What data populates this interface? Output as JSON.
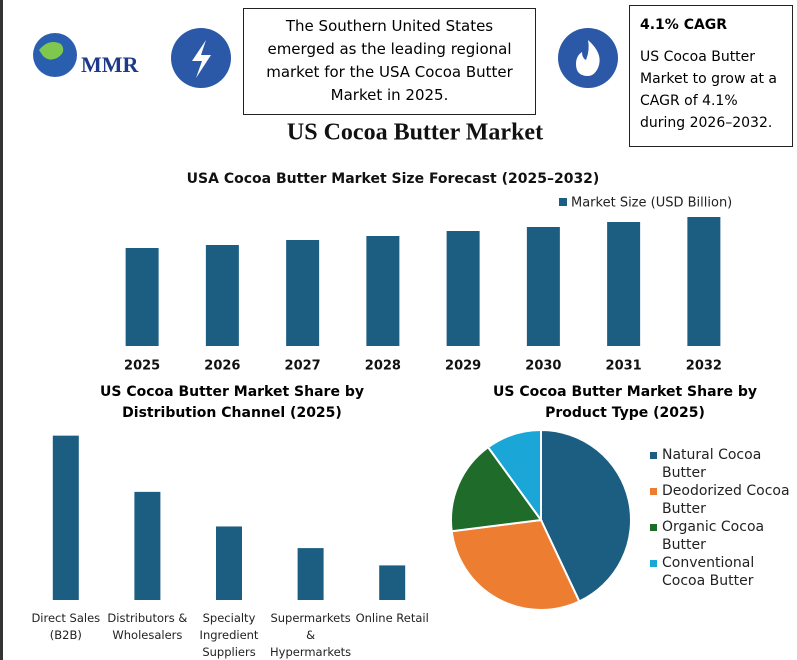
{
  "logo": "MMR",
  "headline": "The Southern United States emerged as the leading regional market for the USA Cocoa Butter Market in 2025.",
  "cagr": {
    "title": "4.1% CAGR",
    "text": "US Cocoa Butter Market to grow at a CAGR of 4.1% during 2026–2032."
  },
  "title": "US Cocoa Butter Market",
  "chart_data": [
    {
      "type": "bar",
      "title": "USA Cocoa Butter Market Size Forecast (2025–2032)",
      "categories": [
        "2025",
        "2026",
        "2027",
        "2028",
        "2029",
        "2030",
        "2031",
        "2032"
      ],
      "series": [
        {
          "name": "Market Size (USD Billion)",
          "color": "#1b5e82",
          "values": [
            0.98,
            1.01,
            1.06,
            1.1,
            1.15,
            1.19,
            1.24,
            1.29
          ]
        }
      ],
      "ylim": [
        0,
        1.3
      ]
    },
    {
      "type": "bar",
      "title": "US Cocoa Butter Market Share by Distribution Channel (2025)",
      "categories": [
        "Direct Sales (B2B)",
        "Distributors & Wholesalers",
        "Specialty Ingredient Suppliers",
        "Supermarkets & Hypermarkets",
        "Online Retail"
      ],
      "values": [
        38,
        25,
        17,
        12,
        8
      ],
      "color": "#1b5e82",
      "ylim": [
        0,
        40
      ]
    },
    {
      "type": "pie",
      "title": "US Cocoa Butter Market Share by Product Type (2025)",
      "categories": [
        "Natural Cocoa Butter",
        "Deodorized Cocoa Butter",
        "Organic Cocoa Butter",
        "Conventional Cocoa Butter"
      ],
      "values": [
        43,
        30,
        17,
        10
      ],
      "colors": [
        "#1b5e82",
        "#ed7d31",
        "#1e6b2a",
        "#1ba6d8"
      ]
    }
  ]
}
